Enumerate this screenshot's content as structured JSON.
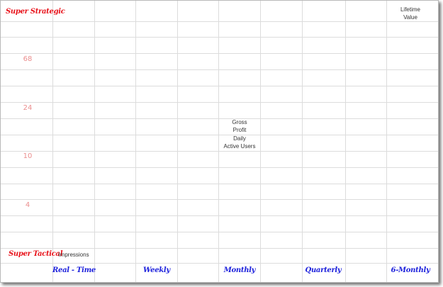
{
  "y_axis": {
    "top_label": "Super Strategic",
    "bottom_label": "Super Tactical",
    "ticks": [
      "68",
      "24",
      "10",
      "4"
    ]
  },
  "x_axis": {
    "labels": [
      "Real - Time",
      "Weekly",
      "Monthly",
      "Quarterly",
      "6-Monthly"
    ]
  },
  "metrics": {
    "lifetime_value": [
      "Lifetime",
      "Value"
    ],
    "gross_profit": [
      "Gross",
      "Profit"
    ],
    "daily_active_users": [
      "Daily",
      "Active Users"
    ],
    "impressions": "Impressions"
  },
  "colors": {
    "y_axis_label": "#e8141c",
    "tick": "#eb8f8f",
    "x_axis_label": "#1e22dc",
    "gridline": "#dcdcdc"
  }
}
